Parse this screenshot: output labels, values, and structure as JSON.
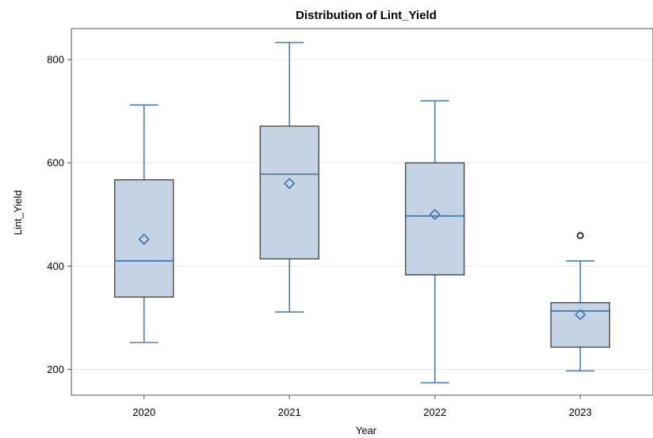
{
  "chart_data": {
    "type": "box",
    "title": "Distribution of Lint_Yield",
    "xlabel": "Year",
    "ylabel": "Lint_Yield",
    "categories": [
      "2020",
      "2021",
      "2022",
      "2023"
    ],
    "ylim": [
      150,
      860
    ],
    "yticks": [
      200,
      400,
      600,
      800
    ],
    "grid": true,
    "colors": {
      "box_fill": "#c5d4e4",
      "box_edge": "#333333",
      "whisker": "#4a7ebb",
      "median": "#3a6fb0",
      "mean_marker": "#3a6fb0",
      "outlier": "#333333",
      "grid": "#e8e8e8"
    },
    "boxes": [
      {
        "category": "2020",
        "min": 252,
        "q1": 340,
        "median": 410,
        "q3": 567,
        "max": 712,
        "mean": 452,
        "outliers": []
      },
      {
        "category": "2021",
        "min": 311,
        "q1": 414,
        "median": 578,
        "q3": 671,
        "max": 833,
        "mean": 560,
        "outliers": []
      },
      {
        "category": "2022",
        "min": 174,
        "q1": 383,
        "median": 497,
        "q3": 600,
        "max": 720,
        "mean": 500,
        "outliers": []
      },
      {
        "category": "2023",
        "min": 197,
        "q1": 243,
        "median": 313,
        "q3": 329,
        "max": 410,
        "mean": 306,
        "outliers": [
          459
        ]
      }
    ]
  }
}
